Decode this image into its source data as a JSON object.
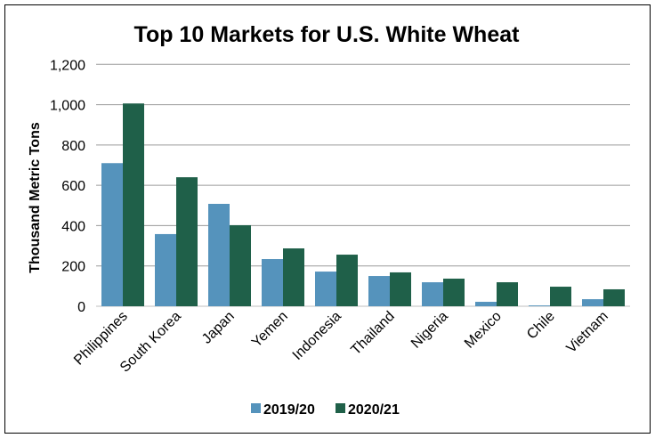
{
  "chart_data": {
    "type": "bar",
    "title": "Top 10 Markets for U.S. White Wheat",
    "xlabel": "",
    "ylabel": "Thousand Metric Tons",
    "ylim": [
      0,
      1200
    ],
    "yticks": [
      0,
      200,
      400,
      600,
      800,
      1000,
      1200
    ],
    "ytick_labels": [
      "0",
      "200",
      "400",
      "600",
      "800",
      "1,000",
      "1,200"
    ],
    "grid": true,
    "legend_position": "bottom",
    "categories": [
      "Philippines",
      "South Korea",
      "Japan",
      "Yemen",
      "Indonesia",
      "Thailand",
      "Nigeria",
      "Mexico",
      "Chile",
      "Vietnam"
    ],
    "series": [
      {
        "name": "2019/20",
        "color": "#5593BC",
        "values": [
          710,
          358,
          508,
          234,
          172,
          150,
          119,
          22,
          4,
          35
        ]
      },
      {
        "name": "2020/21",
        "color": "#1F6049",
        "values": [
          1006,
          640,
          402,
          287,
          256,
          168,
          137,
          119,
          97,
          84
        ]
      }
    ]
  }
}
